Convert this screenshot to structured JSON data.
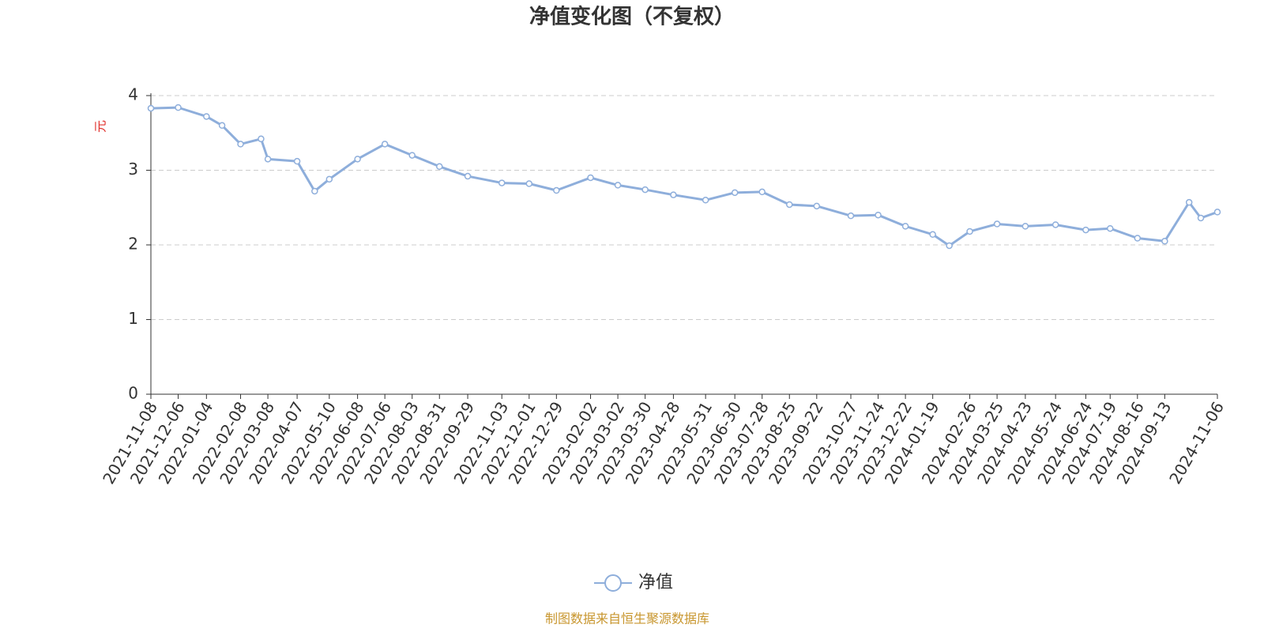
{
  "chart_data": {
    "type": "line",
    "title": "净值变化图（不复权）",
    "y_label": "元",
    "x": [
      "2021-11-08",
      "2021-12-06",
      "2022-01-04",
      "2022-01-20",
      "2022-02-08",
      "2022-03-01",
      "2022-03-08",
      "2022-04-07",
      "2022-04-25",
      "2022-05-10",
      "2022-06-08",
      "2022-07-06",
      "2022-08-03",
      "2022-08-31",
      "2022-09-29",
      "2022-11-03",
      "2022-12-01",
      "2022-12-29",
      "2023-02-02",
      "2023-03-02",
      "2023-03-30",
      "2023-04-28",
      "2023-05-31",
      "2023-06-30",
      "2023-07-28",
      "2023-08-25",
      "2023-09-22",
      "2023-10-27",
      "2023-11-24",
      "2023-12-22",
      "2024-01-19",
      "2024-02-05",
      "2024-02-26",
      "2024-03-25",
      "2024-04-23",
      "2024-05-24",
      "2024-06-24",
      "2024-07-19",
      "2024-08-16",
      "2024-09-13",
      "2024-10-08",
      "2024-10-20",
      "2024-11-06"
    ],
    "series": [
      {
        "name": "净值",
        "color": "#8eaedb",
        "values": [
          3.83,
          3.84,
          3.72,
          3.6,
          3.35,
          3.42,
          3.15,
          3.12,
          2.72,
          2.88,
          3.15,
          3.35,
          3.2,
          3.05,
          2.92,
          2.83,
          2.82,
          2.73,
          2.9,
          2.8,
          2.74,
          2.67,
          2.6,
          2.7,
          2.71,
          2.54,
          2.52,
          2.39,
          2.4,
          2.25,
          2.14,
          1.99,
          2.18,
          2.28,
          2.25,
          2.27,
          2.2,
          2.22,
          2.09,
          2.05,
          2.57,
          2.36,
          2.44
        ]
      }
    ],
    "xlim": [
      "2021-11-08",
      "2024-11-06"
    ],
    "xticks": [
      "2021-11-08",
      "2021-12-06",
      "2022-01-04",
      "2022-02-08",
      "2022-03-08",
      "2022-04-07",
      "2022-05-10",
      "2022-06-08",
      "2022-07-06",
      "2022-08-03",
      "2022-08-31",
      "2022-09-29",
      "2022-11-03",
      "2022-12-01",
      "2022-12-29",
      "2023-02-02",
      "2023-03-02",
      "2023-03-30",
      "2023-04-28",
      "2023-05-31",
      "2023-06-30",
      "2023-07-28",
      "2023-08-25",
      "2023-09-22",
      "2023-10-27",
      "2023-11-24",
      "2023-12-22",
      "2024-01-19",
      "2024-02-26",
      "2024-03-25",
      "2024-04-23",
      "2024-05-24",
      "2024-06-24",
      "2024-07-19",
      "2024-08-16",
      "2024-09-13",
      "2024-11-06"
    ],
    "ylim": [
      0,
      4
    ],
    "yticks": [
      0,
      1,
      2,
      3,
      4
    ],
    "grid": true,
    "legend": "bottom",
    "source": "制图数据来自恒生聚源数据库"
  }
}
